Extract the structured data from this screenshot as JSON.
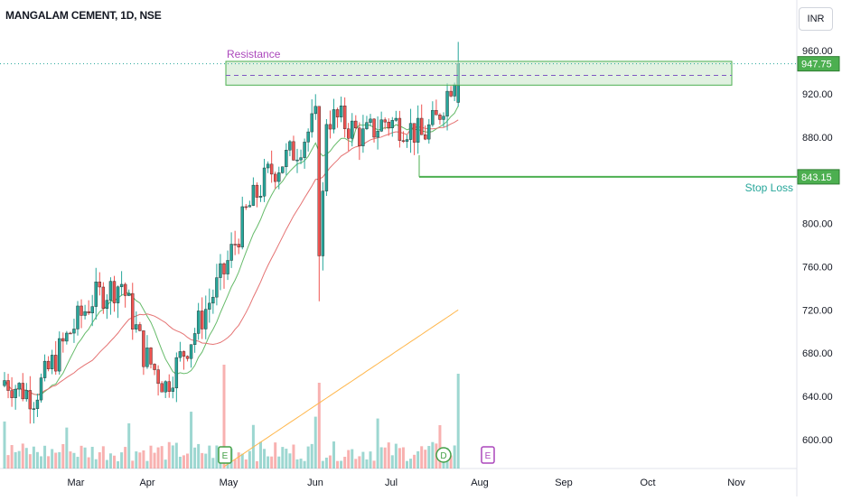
{
  "header": {
    "symbol_title": "MANGALAM CEMENT, 1D, NSE",
    "currency": "INR"
  },
  "colors": {
    "up": "#26a69a",
    "down": "#ef5350",
    "sma_green": "#66bb6a",
    "sma_red": "#e57373",
    "sma_orange": "#ffb74d",
    "zone_fill": "#c8e6c9",
    "zone_border": "#4caf50",
    "resistance_text": "#ab47bc",
    "stop_loss_text": "#26a69a"
  },
  "annotations": {
    "resistance_label": "Resistance",
    "stop_loss_label": "Stop Loss"
  },
  "markers": [
    {
      "letter": "E",
      "type": "earnings"
    },
    {
      "letter": "D",
      "type": "dividend"
    },
    {
      "letter": "E",
      "type": "earnings-upcoming"
    }
  ],
  "chart_data": {
    "type": "candlestick",
    "title": "MANGALAM CEMENT, 1D, NSE",
    "x_tick_labels": [
      "Mar",
      "Apr",
      "May",
      "Jun",
      "Jul",
      "Aug",
      "Sep",
      "Oct",
      "Nov"
    ],
    "y_tick_labels": [
      "960.00",
      "920.00",
      "880.00",
      "800.00",
      "760.00",
      "720.00",
      "680.00",
      "640.00",
      "600.00"
    ],
    "y_ticks": [
      960,
      920,
      880,
      800,
      760,
      720,
      680,
      640,
      600
    ],
    "ylim": [
      578,
      978
    ],
    "price_badges": {
      "last": "947.75",
      "stop_loss": "843.15"
    },
    "levels": {
      "last_price": 947.75,
      "resistance_zone": [
        928,
        950
      ],
      "resistance_mid": 937,
      "stop_loss": 843.15
    },
    "grid": false,
    "legend": "none"
  }
}
